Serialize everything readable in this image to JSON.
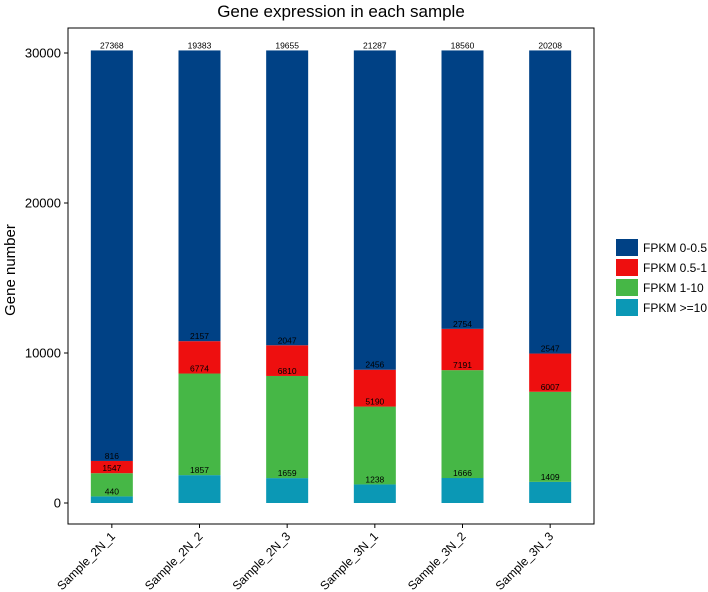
{
  "chart_data": {
    "type": "bar",
    "stacked": true,
    "title": "Gene expression in each sample",
    "xlabel": "",
    "ylabel": "Gene number",
    "ylim": [
      0,
      31500
    ],
    "yticks": [
      0,
      10000,
      20000,
      30000
    ],
    "grid": false,
    "legend_position": "right",
    "categories": [
      "Sample_2N_1",
      "Sample_2N_2",
      "Sample_2N_3",
      "Sample_3N_1",
      "Sample_3N_2",
      "Sample_3N_3"
    ],
    "series": [
      {
        "name": "FPKM >=10",
        "color": "#0b98b5",
        "values": [
          440,
          1857,
          1659,
          1238,
          1666,
          1409
        ]
      },
      {
        "name": "FPKM 1-10",
        "color": "#46b746",
        "values": [
          1547,
          6774,
          6810,
          5190,
          7191,
          6007
        ]
      },
      {
        "name": "FPKM 0.5-1",
        "color": "#ee0f0f",
        "values": [
          816,
          2157,
          2047,
          2456,
          2754,
          2547
        ]
      },
      {
        "name": "FPKM 0-0.5",
        "color": "#004185",
        "values": [
          27368,
          19383,
          19655,
          21287,
          18560,
          20208
        ]
      }
    ],
    "legend_order": [
      "FPKM 0-0.5",
      "FPKM 0.5-1",
      "FPKM 1-10",
      "FPKM >=10"
    ]
  }
}
